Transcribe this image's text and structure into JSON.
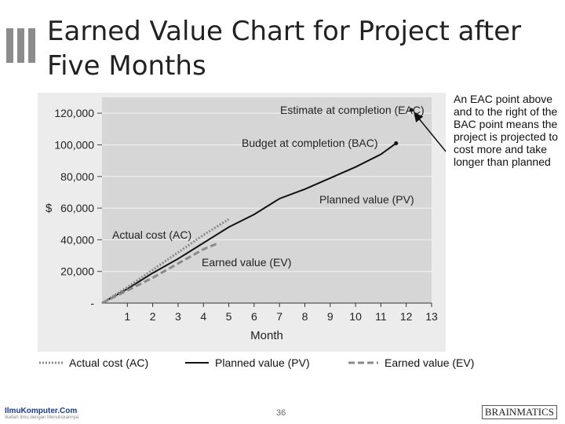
{
  "slide": {
    "title": "Earned Value Chart for Project after Five Months",
    "page_number": "36",
    "footer_left": "IlmuKomputer.Com",
    "footer_left_sub": "Ikatlah Ilmu dengan Menuliskannya",
    "footer_right": "BRAINMATICS",
    "side_note": "An EAC point above and to the right of the BAC point means the project is projected to cost more and take longer than planned"
  },
  "chart_data": {
    "type": "line",
    "title": "",
    "xlabel": "Month",
    "ylabel": "$",
    "xlim": [
      0,
      13
    ],
    "ylim": [
      0,
      130000
    ],
    "x_ticks": [
      1,
      2,
      3,
      4,
      5,
      6,
      7,
      8,
      9,
      10,
      11,
      12,
      13
    ],
    "y_ticks": [
      {
        "value": 0,
        "label": "-"
      },
      {
        "value": 20000,
        "label": "20,000"
      },
      {
        "value": 40000,
        "label": "40,000"
      },
      {
        "value": 60000,
        "label": "60,000"
      },
      {
        "value": 80000,
        "label": "80,000"
      },
      {
        "value": 100000,
        "label": "100,000"
      },
      {
        "value": 120000,
        "label": "120,000"
      }
    ],
    "series": [
      {
        "name": "Planned value (PV)",
        "style": "solid",
        "color": "#111111",
        "x": [
          0,
          1,
          2,
          3,
          4,
          5,
          6,
          7,
          8,
          9,
          10,
          11,
          11.6
        ],
        "y": [
          0,
          9000,
          19000,
          28000,
          38000,
          48000,
          56000,
          66000,
          72000,
          79000,
          86000,
          94000,
          101000
        ]
      },
      {
        "name": "Actual cost (AC)",
        "style": "dotted",
        "color": "#8a8a8a",
        "x": [
          0,
          1,
          2,
          3,
          4,
          5
        ],
        "y": [
          0,
          10000,
          21000,
          32000,
          43000,
          53000
        ]
      },
      {
        "name": "Earned value (EV)",
        "style": "dashed",
        "color": "#8a8a8a",
        "x": [
          0,
          1,
          2,
          3,
          4,
          4.6
        ],
        "y": [
          0,
          8000,
          16000,
          25000,
          34000,
          38000
        ]
      }
    ],
    "points": [
      {
        "name": "EAC",
        "x": 12.2,
        "y": 122000
      },
      {
        "name": "BAC",
        "x": 11.6,
        "y": 101000
      }
    ],
    "annotations": {
      "eac": "Estimate at completion (EAC)",
      "bac": "Budget at completion (BAC)",
      "pv": "Planned value (PV)",
      "ac": "Actual cost (AC)",
      "ev": "Earned value (EV)"
    },
    "legend": {
      "position": "bottom",
      "ac": "Actual cost (AC)",
      "pv": "Planned value (PV)",
      "ev": "Earned value (EV)"
    },
    "grid": true
  }
}
